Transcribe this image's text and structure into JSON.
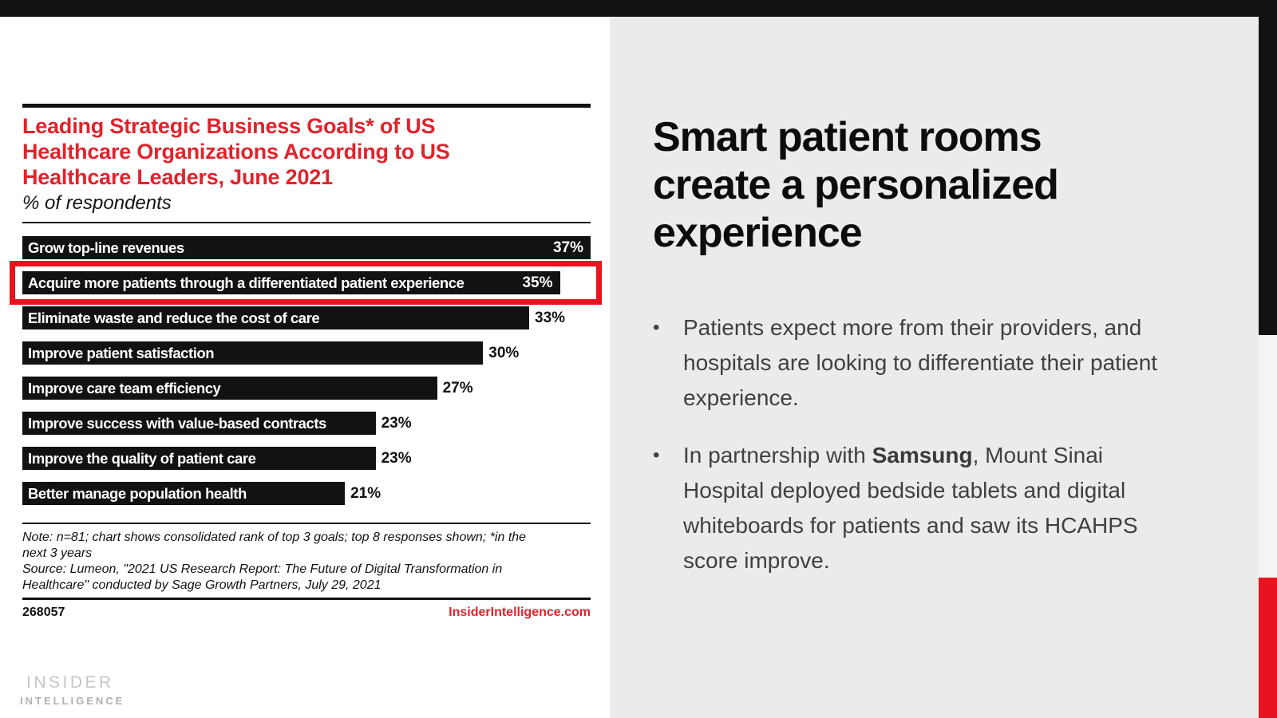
{
  "chart_data": {
    "type": "bar",
    "orientation": "horizontal",
    "title": "Leading Strategic Business Goals* of US Healthcare Organizations According to US Healthcare Leaders, June 2021",
    "subtitle": "% of respondents",
    "categories": [
      "Grow top-line revenues",
      "Acquire more patients through a differentiated patient experience",
      "Eliminate waste and reduce the cost of care",
      "Improve patient satisfaction",
      "Improve care team efficiency",
      "Improve success with value-based contracts",
      "Improve the quality of patient care",
      "Better manage population health"
    ],
    "values": [
      37,
      35,
      33,
      30,
      27,
      23,
      23,
      21
    ],
    "value_suffix": "%",
    "xlim": [
      0,
      37
    ],
    "grid": false,
    "axes_shown": false,
    "bar_color": "#121212",
    "bar_text_color": "#ffffff",
    "highlighted_index": 1,
    "highlight_color": "#e8131f",
    "value_label_inside": [
      true,
      true,
      false,
      false,
      false,
      false,
      false,
      false
    ],
    "note": "Note: n=81; chart shows consolidated rank of top 3 goals; top 8 responses shown; *in the next 3 years",
    "source": "Source: Lumeon, \"2021 US Research Report: The Future of Digital Transformation in Healthcare\" conducted by Sage Growth Partners, July 29, 2021"
  },
  "chart": {
    "title_lines": [
      "Leading Strategic Business Goals* of US",
      "Healthcare Organizations According to US",
      "Healthcare Leaders, June 2021"
    ],
    "title_color": "#e1232b",
    "footer": {
      "id": "268057",
      "site": "InsiderIntelligence.com"
    }
  },
  "panel": {
    "background": "#ebebeb",
    "heading": "Smart patient rooms create a personalized experience",
    "bullets": [
      {
        "lines": [
          [
            {
              "text": "Patients expect more from their providers, and",
              "bold": false
            }
          ],
          [
            {
              "text": "hospitals are looking to differentiate their patient",
              "bold": false
            }
          ],
          [
            {
              "text": "experience.",
              "bold": false
            }
          ]
        ]
      },
      {
        "lines": [
          [
            {
              "text": "In partnership with ",
              "bold": false
            },
            {
              "text": "Samsung",
              "bold": true
            },
            {
              "text": ", Mount Sinai",
              "bold": false
            }
          ],
          [
            {
              "text": "Hospital deployed bedside tablets and digital",
              "bold": false
            }
          ],
          [
            {
              "text": "whiteboards for patients and saw its HCAHPS",
              "bold": false
            }
          ],
          [
            {
              "text": "score improve.",
              "bold": false
            }
          ]
        ]
      }
    ]
  },
  "edge_strip_colors": {
    "top": "#121212",
    "middle": "#f4f4f4",
    "bottom": "#e8131f"
  },
  "logo": {
    "line1": "INSIDER",
    "line2": "INTELLIGENCE"
  }
}
